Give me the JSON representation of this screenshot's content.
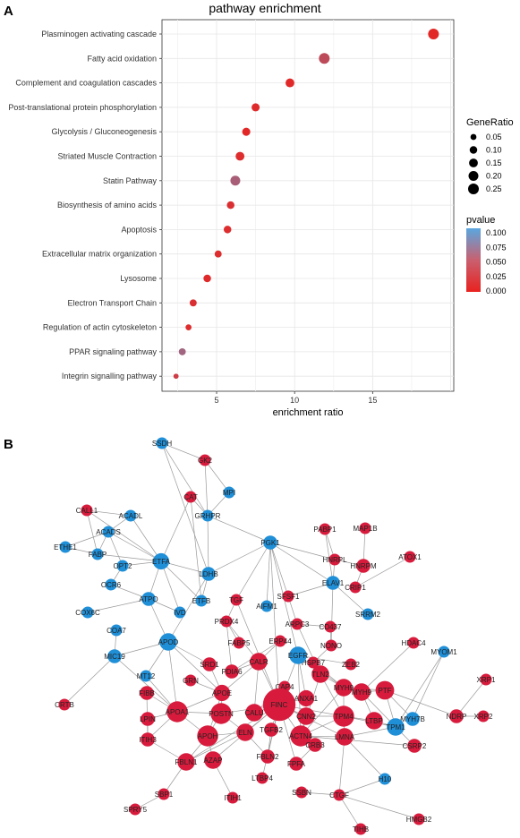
{
  "panels": {
    "a": "A",
    "b": "B"
  },
  "chart_data": [
    {
      "type": "scatter",
      "title": "pathway enrichment",
      "xlabel": "enrichment ratio",
      "ylabel": "",
      "xlim": [
        1.5,
        20.2
      ],
      "x_ticks": [
        "5",
        "10",
        "15"
      ],
      "grid": true,
      "categories": [
        "Plasminogen activating cascade",
        "Fatty acid oxidation",
        "Complement and coagulation cascades",
        "Post-translational protein phosphorylation",
        "Glycolysis / Gluconeogenesis",
        "Striated Muscle Contraction",
        "Statin Pathway",
        "Biosynthesis of amino acids",
        "Apoptosis",
        "Extracellular matrix organization",
        "Lysosome",
        "Electron Transport Chain",
        "Regulation of actin cytoskeleton",
        "PPAR signaling pathway",
        "Integrin signalling pathway"
      ],
      "series": [
        {
          "x": [
            18.9,
            11.9,
            9.7,
            7.5,
            6.9,
            6.5,
            6.2,
            5.9,
            5.7,
            5.1,
            4.4,
            3.5,
            3.2,
            2.8,
            2.4
          ],
          "gene_ratio": [
            0.25,
            0.25,
            0.15,
            0.12,
            0.12,
            0.15,
            0.2,
            0.1,
            0.1,
            0.08,
            0.1,
            0.08,
            0.05,
            0.08,
            0.03
          ],
          "pvalue": [
            0.004,
            0.03,
            0.005,
            0.006,
            0.004,
            0.008,
            0.045,
            0.01,
            0.008,
            0.008,
            0.006,
            0.01,
            0.008,
            0.05,
            0.02
          ]
        }
      ],
      "legend": {
        "size_title": "GeneRatio",
        "size_labels": [
          "0.05",
          "0.10",
          "0.15",
          "0.20",
          "0.25"
        ],
        "size_values": [
          0.05,
          0.1,
          0.15,
          0.2,
          0.25
        ],
        "color_title": "pvalue",
        "color_labels": [
          "0.100",
          "0.075",
          "0.050",
          "0.025",
          "0.000"
        ],
        "color_low": "#e8221f",
        "color_high": "#5aa7e0",
        "position": "right"
      }
    },
    {
      "type": "network",
      "colors": {
        "red": "#d81b3c",
        "blue": "#1f8fd8",
        "edge": "#9a9a9a"
      },
      "nodes": [
        {
          "id": "SSDH",
          "c": "blue",
          "s": 1
        },
        {
          "id": "GK2",
          "c": "red",
          "s": 1
        },
        {
          "id": "MPI",
          "c": "blue",
          "s": 1
        },
        {
          "id": "CAT",
          "c": "red",
          "s": 1
        },
        {
          "id": "CALL1",
          "c": "red",
          "s": 1
        },
        {
          "id": "ACADL",
          "c": "blue",
          "s": 1
        },
        {
          "id": "ACADS",
          "c": "blue",
          "s": 1
        },
        {
          "id": "GRHPR",
          "c": "blue",
          "s": 1
        },
        {
          "id": "ETHE1",
          "c": "blue",
          "s": 1
        },
        {
          "id": "FABP",
          "c": "blue",
          "s": 1
        },
        {
          "id": "ETFA",
          "c": "blue",
          "s": 1.4
        },
        {
          "id": "OPT2",
          "c": "blue",
          "s": 1
        },
        {
          "id": "LDHB",
          "c": "blue",
          "s": 1.2
        },
        {
          "id": "PGK1",
          "c": "blue",
          "s": 1.2
        },
        {
          "id": "PABP1",
          "c": "red",
          "s": 1
        },
        {
          "id": "MAP1B",
          "c": "red",
          "s": 1
        },
        {
          "id": "ATOX1",
          "c": "red",
          "s": 1
        },
        {
          "id": "HNRPL",
          "c": "red",
          "s": 1
        },
        {
          "id": "HNRPM",
          "c": "red",
          "s": 1.2
        },
        {
          "id": "OCR6",
          "c": "blue",
          "s": 1
        },
        {
          "id": "ETFB",
          "c": "blue",
          "s": 1
        },
        {
          "id": "AIFM1",
          "c": "blue",
          "s": 1
        },
        {
          "id": "TGF",
          "c": "red",
          "s": 1
        },
        {
          "id": "SFSF1",
          "c": "red",
          "s": 1
        },
        {
          "id": "ELAV1",
          "c": "blue",
          "s": 1.2
        },
        {
          "id": "CRIP1",
          "c": "red",
          "s": 1
        },
        {
          "id": "ATPO",
          "c": "blue",
          "s": 1.2
        },
        {
          "id": "COX6C",
          "c": "blue",
          "s": 1
        },
        {
          "id": "IVD",
          "c": "blue",
          "s": 1
        },
        {
          "id": "PRDX4",
          "c": "red",
          "s": 1
        },
        {
          "id": "ARPC3",
          "c": "red",
          "s": 1
        },
        {
          "id": "CD437",
          "c": "red",
          "s": 1
        },
        {
          "id": "SRRM2",
          "c": "blue",
          "s": 1
        },
        {
          "id": "COA7",
          "c": "blue",
          "s": 1
        },
        {
          "id": "FABP5",
          "c": "red",
          "s": 1
        },
        {
          "id": "ERP44",
          "c": "red",
          "s": 1
        },
        {
          "id": "NONO",
          "c": "red",
          "s": 1
        },
        {
          "id": "HDAC4",
          "c": "red",
          "s": 1
        },
        {
          "id": "APOD",
          "c": "blue",
          "s": 1.5
        },
        {
          "id": "HSPB7",
          "c": "red",
          "s": 1
        },
        {
          "id": "ZEB2",
          "c": "red",
          "s": 1
        },
        {
          "id": "MIC19",
          "c": "blue",
          "s": 1.2
        },
        {
          "id": "SRD1",
          "c": "red",
          "s": 1.2
        },
        {
          "id": "CALR",
          "c": "red",
          "s": 1.5
        },
        {
          "id": "MYOM1",
          "c": "blue",
          "s": 1
        },
        {
          "id": "PDIA6",
          "c": "red",
          "s": 1.2
        },
        {
          "id": "CAP4",
          "c": "red",
          "s": 1
        },
        {
          "id": "GRN",
          "c": "red",
          "s": 1
        },
        {
          "id": "EGFR",
          "c": "blue",
          "s": 1.5
        },
        {
          "id": "MYH9",
          "c": "red",
          "s": 1.5
        },
        {
          "id": "PTF",
          "c": "red",
          "s": 1.6
        },
        {
          "id": "MT12",
          "c": "blue",
          "s": 1
        },
        {
          "id": "APOE",
          "c": "red",
          "s": 1.4
        },
        {
          "id": "ANXA1",
          "c": "red",
          "s": 1.4
        },
        {
          "id": "TLN2",
          "c": "red",
          "s": 1.5
        },
        {
          "id": "MYH9b",
          "c": "red",
          "s": 1.5
        },
        {
          "id": "XRP1",
          "c": "red",
          "s": 1
        },
        {
          "id": "CRTB",
          "c": "red",
          "s": 1
        },
        {
          "id": "APOA1",
          "c": "red",
          "s": 1.8
        },
        {
          "id": "POSTN",
          "c": "red",
          "s": 1.8
        },
        {
          "id": "CALU",
          "c": "red",
          "s": 1.5
        },
        {
          "id": "FINC",
          "c": "red",
          "s": 2.8
        },
        {
          "id": "CNN2",
          "c": "red",
          "s": 1.5
        },
        {
          "id": "TPM4",
          "c": "red",
          "s": 1.8
        },
        {
          "id": "LTBP",
          "c": "red",
          "s": 1.5
        },
        {
          "id": "MYH7B",
          "c": "blue",
          "s": 1.2
        },
        {
          "id": "NDRP",
          "c": "red",
          "s": 1.2
        },
        {
          "id": "FIBB",
          "c": "red",
          "s": 1.2
        },
        {
          "id": "APOH",
          "c": "red",
          "s": 1.8
        },
        {
          "id": "ELN",
          "c": "red",
          "s": 1.5
        },
        {
          "id": "ACTN4",
          "c": "red",
          "s": 1.8
        },
        {
          "id": "TPM1",
          "c": "blue",
          "s": 1.5
        },
        {
          "id": "CSRP2",
          "c": "red",
          "s": 1.2
        },
        {
          "id": "XRP2",
          "c": "red",
          "s": 1
        },
        {
          "id": "LPIN",
          "c": "red",
          "s": 1.2
        },
        {
          "id": "ITIH3",
          "c": "red",
          "s": 1.2
        },
        {
          "id": "TGFB2",
          "c": "red",
          "s": 1.2
        },
        {
          "id": "LMNA",
          "c": "red",
          "s": 1.5
        },
        {
          "id": "FBLN1",
          "c": "red",
          "s": 1.5
        },
        {
          "id": "AZAP",
          "c": "red",
          "s": 1.5
        },
        {
          "id": "FBLN2",
          "c": "red",
          "s": 1.2
        },
        {
          "id": "CRB3",
          "c": "red",
          "s": 1.2
        },
        {
          "id": "FPFA",
          "c": "red",
          "s": 1.2
        },
        {
          "id": "LTBP4",
          "c": "red",
          "s": 1
        },
        {
          "id": "SBP1",
          "c": "red",
          "s": 1
        },
        {
          "id": "H10",
          "c": "blue",
          "s": 1
        },
        {
          "id": "SSBN",
          "c": "red",
          "s": 1
        },
        {
          "id": "CTGF",
          "c": "red",
          "s": 1
        },
        {
          "id": "ITIH1",
          "c": "red",
          "s": 1
        },
        {
          "id": "SPRY5",
          "c": "red",
          "s": 1
        },
        {
          "id": "HMGB2",
          "c": "red",
          "s": 1
        },
        {
          "id": "TIHB",
          "c": "red",
          "s": 1
        }
      ],
      "labels": {
        "MYH9b": "MYH9"
      }
    }
  ]
}
